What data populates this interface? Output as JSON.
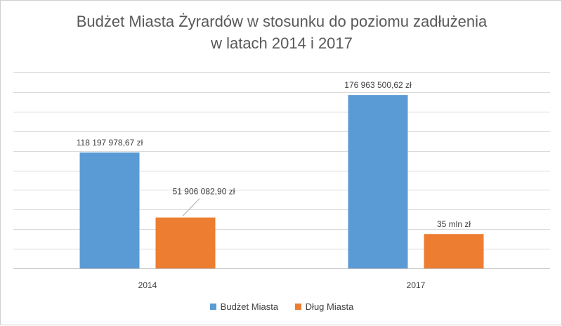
{
  "chart_data": {
    "type": "bar",
    "title": "Budżet Miasta Żyrardów w stosunku do poziomu zadłużenia",
    "title_line2": "w latach 2014 i 2017",
    "categories": [
      "2014",
      "2017"
    ],
    "series": [
      {
        "name": "Budżet Miasta",
        "color": "#5b9bd5",
        "values": [
          118197978.67,
          176963500.62
        ],
        "labels": [
          "118 197 978,67 zł",
          "176 963 500,62 zł"
        ]
      },
      {
        "name": "Dług Miasta",
        "color": "#ed7d31",
        "values": [
          51906082.9,
          35000000
        ],
        "labels": [
          "51 906 082,90 zł",
          "35 mln zł"
        ]
      }
    ],
    "ylim": [
      0,
      200000000
    ],
    "grid": true,
    "legend": "bottom"
  }
}
